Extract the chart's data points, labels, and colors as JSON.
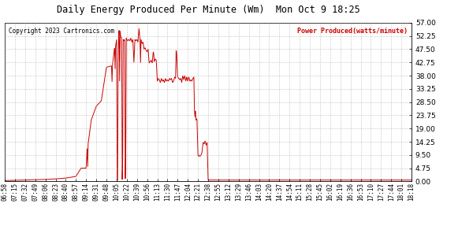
{
  "title": "Daily Energy Produced Per Minute (Wm)  Mon Oct 9 18:25",
  "copyright": "Copyright 2023 Cartronics.com",
  "legend_label": "Power Produced(watts/minute)",
  "background_color": "#ffffff",
  "line_color": "#cc0000",
  "grid_color": "#999999",
  "yticks": [
    0.0,
    4.75,
    9.5,
    14.25,
    19.0,
    23.75,
    28.5,
    33.25,
    38.0,
    42.75,
    47.5,
    52.25,
    57.0
  ],
  "ymax": 57.0,
  "ymin": 0.0,
  "xtick_labels": [
    "06:58",
    "07:15",
    "07:32",
    "07:49",
    "08:06",
    "08:23",
    "08:40",
    "08:57",
    "09:14",
    "09:31",
    "09:48",
    "10:05",
    "10:22",
    "10:39",
    "10:56",
    "11:13",
    "11:30",
    "11:47",
    "12:04",
    "12:21",
    "12:38",
    "12:55",
    "13:12",
    "13:29",
    "13:46",
    "14:03",
    "14:20",
    "14:37",
    "14:54",
    "15:11",
    "15:28",
    "15:45",
    "16:02",
    "16:19",
    "16:36",
    "16:53",
    "17:10",
    "17:27",
    "17:44",
    "18:01",
    "18:18"
  ],
  "key_points": [
    [
      0,
      0.3
    ],
    [
      1,
      0.4
    ],
    [
      2,
      0.5
    ],
    [
      3,
      0.6
    ],
    [
      4,
      0.7
    ],
    [
      5,
      0.9
    ],
    [
      6,
      1.2
    ],
    [
      7,
      1.8
    ],
    [
      7.5,
      4.75
    ],
    [
      8.0,
      4.8
    ],
    [
      8.1,
      12.0
    ],
    [
      8.15,
      5.0
    ],
    [
      8.2,
      13.5
    ],
    [
      8.5,
      22.0
    ],
    [
      9.0,
      27.0
    ],
    [
      9.5,
      29.0
    ],
    [
      10.0,
      41.0
    ],
    [
      10.5,
      41.5
    ],
    [
      10.55,
      35.5
    ],
    [
      10.6,
      42.0
    ],
    [
      10.8,
      48.0
    ],
    [
      10.85,
      40.0
    ],
    [
      10.9,
      48.5
    ],
    [
      11.0,
      51.0
    ],
    [
      11.05,
      0.3
    ],
    [
      11.1,
      0.5
    ],
    [
      11.15,
      42.0
    ],
    [
      11.2,
      52.5
    ],
    [
      11.25,
      54.5
    ],
    [
      11.3,
      35.0
    ],
    [
      11.35,
      54.0
    ],
    [
      11.4,
      52.0
    ],
    [
      11.5,
      51.5
    ],
    [
      11.55,
      0.3
    ],
    [
      11.6,
      8.0
    ],
    [
      11.65,
      51.0
    ],
    [
      11.7,
      50.5
    ],
    [
      11.8,
      51.0
    ],
    [
      11.85,
      0.5
    ],
    [
      11.9,
      9.5
    ],
    [
      11.95,
      51.5
    ],
    [
      12.0,
      51.0
    ],
    [
      12.1,
      50.5
    ],
    [
      12.2,
      51.0
    ],
    [
      12.3,
      50.5
    ],
    [
      12.4,
      51.5
    ],
    [
      12.5,
      50.0
    ],
    [
      12.6,
      51.0
    ],
    [
      12.7,
      42.5
    ],
    [
      12.8,
      51.0
    ],
    [
      12.9,
      50.5
    ],
    [
      13.0,
      51.0
    ],
    [
      13.1,
      50.0
    ],
    [
      13.2,
      55.0
    ],
    [
      13.3,
      51.0
    ],
    [
      13.35,
      42.0
    ],
    [
      13.4,
      51.0
    ],
    [
      13.5,
      49.5
    ],
    [
      13.6,
      50.0
    ],
    [
      13.7,
      47.5
    ],
    [
      13.8,
      48.0
    ],
    [
      13.9,
      47.0
    ],
    [
      14.0,
      46.5
    ],
    [
      14.1,
      47.5
    ],
    [
      14.2,
      42.5
    ],
    [
      14.3,
      43.0
    ],
    [
      14.4,
      43.5
    ],
    [
      14.5,
      42.5
    ],
    [
      14.6,
      46.5
    ],
    [
      14.65,
      46.0
    ],
    [
      14.7,
      43.0
    ],
    [
      14.75,
      43.5
    ],
    [
      14.8,
      44.0
    ],
    [
      14.9,
      43.5
    ],
    [
      15.0,
      36.0
    ],
    [
      15.1,
      37.0
    ],
    [
      15.2,
      36.5
    ],
    [
      15.3,
      35.5
    ],
    [
      15.4,
      37.0
    ],
    [
      15.5,
      36.0
    ],
    [
      15.6,
      36.5
    ],
    [
      15.7,
      35.5
    ],
    [
      15.8,
      37.0
    ],
    [
      15.9,
      36.0
    ],
    [
      16.0,
      36.5
    ],
    [
      16.1,
      36.0
    ],
    [
      16.2,
      37.0
    ],
    [
      16.3,
      36.5
    ],
    [
      16.4,
      37.0
    ],
    [
      16.5,
      35.5
    ],
    [
      16.6,
      36.0
    ],
    [
      16.7,
      37.5
    ],
    [
      16.8,
      37.0
    ],
    [
      16.85,
      47.0
    ],
    [
      16.9,
      46.5
    ],
    [
      17.0,
      37.5
    ],
    [
      17.1,
      37.0
    ],
    [
      17.2,
      36.5
    ],
    [
      17.3,
      37.0
    ],
    [
      17.35,
      36.5
    ],
    [
      17.4,
      35.5
    ],
    [
      17.5,
      38.0
    ],
    [
      17.6,
      36.5
    ],
    [
      17.7,
      38.0
    ],
    [
      17.8,
      36.0
    ],
    [
      17.9,
      37.5
    ],
    [
      18.0,
      36.0
    ],
    [
      18.1,
      37.5
    ],
    [
      18.2,
      36.0
    ],
    [
      18.3,
      36.5
    ],
    [
      18.4,
      36.0
    ],
    [
      18.5,
      37.0
    ],
    [
      18.6,
      37.5
    ],
    [
      18.65,
      26.0
    ],
    [
      18.7,
      23.0
    ],
    [
      18.75,
      25.5
    ],
    [
      18.8,
      22.0
    ],
    [
      18.9,
      22.5
    ],
    [
      19.0,
      9.5
    ],
    [
      19.05,
      9.0
    ],
    [
      19.1,
      9.5
    ],
    [
      19.2,
      9.0
    ],
    [
      19.3,
      9.5
    ],
    [
      19.4,
      10.5
    ],
    [
      19.5,
      14.0
    ],
    [
      19.6,
      13.5
    ],
    [
      19.7,
      14.5
    ],
    [
      19.8,
      13.0
    ],
    [
      19.9,
      14.0
    ],
    [
      20.0,
      0.5
    ]
  ]
}
